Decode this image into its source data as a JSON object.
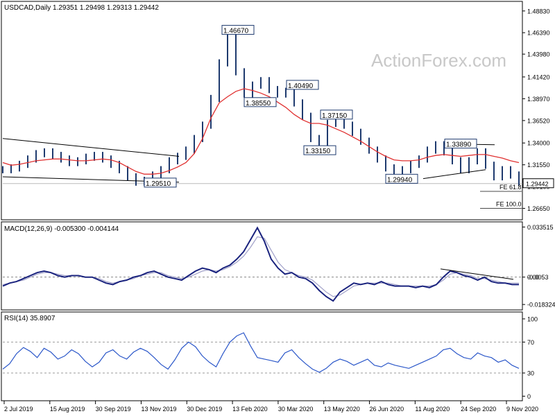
{
  "header": {
    "symbol_line": "USDCAD,Daily  1.29351 1.29498 1.29313 1.29442",
    "watermark": "ActionForex.com"
  },
  "colors": {
    "candle": "#1e3a6e",
    "ma": "#e03030",
    "macd_line": "#1a237e",
    "signal_line": "#a0a0c8",
    "rsi_line": "#2b57c9",
    "trendline": "#000000",
    "fe_line": "#4a4a4a"
  },
  "chart_data": [
    {
      "type": "candlestick",
      "title": "USDCAD,Daily  1.29351 1.29498 1.29313 1.29442",
      "ohlc_last": {
        "open": 1.29351,
        "high": 1.29498,
        "low": 1.29313,
        "close": 1.29442
      },
      "ylim": [
        1.2545,
        1.4975
      ],
      "y_ticks": [
        "1.48830",
        "1.46390",
        "1.43980",
        "1.41420",
        "1.38970",
        "1.36520",
        "1.34000",
        "1.31550",
        "1.29100",
        "1.26650"
      ],
      "x_ticks": [
        "2 Jul 2019",
        "15 Aug 2019",
        "30 Sep 2019",
        "13 Nov 2019",
        "30 Dec 2019",
        "13 Feb 2020",
        "30 Mar 2020",
        "13 May 2020",
        "26 Jun 2020",
        "11 Aug 2020",
        "24 Sep 2020",
        "9 Nov 2020"
      ],
      "current_price_label": "1.29442",
      "annotations": [
        {
          "text": "1.46670",
          "value": 1.4667
        },
        {
          "text": "1.38550",
          "value": 1.3855
        },
        {
          "text": "1.40490",
          "value": 1.4049
        },
        {
          "text": "1.37150",
          "value": 1.3715
        },
        {
          "text": "1.33150",
          "value": 1.3315
        },
        {
          "text": "1.29510",
          "value": 1.2951
        },
        {
          "text": "1.29940",
          "value": 1.2994
        },
        {
          "text": "1.33890",
          "value": 1.3389
        }
      ],
      "fib_levels": [
        {
          "text": "FE 61.8",
          "value": 1.2895
        },
        {
          "text": "FE 100.0",
          "value": 1.2705
        }
      ],
      "price_series_approx": [
        1.31,
        1.312,
        1.316,
        1.322,
        1.328,
        1.33,
        1.326,
        1.322,
        1.318,
        1.32,
        1.324,
        1.326,
        1.322,
        1.316,
        1.31,
        1.302,
        1.296,
        1.298,
        1.304,
        1.31,
        1.32,
        1.325,
        1.332,
        1.345,
        1.36,
        1.39,
        1.43,
        1.466,
        1.42,
        1.395,
        1.405,
        1.41,
        1.4,
        1.395,
        1.398,
        1.385,
        1.37,
        1.345,
        1.338,
        1.362,
        1.368,
        1.36,
        1.352,
        1.342,
        1.332,
        1.322,
        1.312,
        1.305,
        1.31,
        1.316,
        1.322,
        1.332,
        1.338,
        1.33,
        1.32,
        1.31,
        1.32,
        1.33,
        1.315,
        1.302,
        1.31,
        1.304,
        1.296
      ],
      "ma_series_approx": [
        1.318,
        1.315,
        1.316,
        1.318,
        1.32,
        1.321,
        1.322,
        1.322,
        1.321,
        1.32,
        1.32,
        1.321,
        1.322,
        1.321,
        1.318,
        1.313,
        1.308,
        1.305,
        1.305,
        1.306,
        1.309,
        1.313,
        1.318,
        1.328,
        1.345,
        1.368,
        1.385,
        1.392,
        1.398,
        1.401,
        1.399,
        1.396,
        1.392,
        1.386,
        1.38,
        1.372,
        1.366,
        1.362,
        1.362,
        1.36,
        1.356,
        1.352,
        1.347,
        1.342,
        1.336,
        1.33,
        1.325,
        1.321,
        1.32,
        1.32,
        1.321,
        1.324,
        1.326,
        1.327,
        1.326,
        1.325,
        1.326,
        1.327,
        1.327,
        1.325,
        1.323,
        1.32,
        1.318
      ]
    },
    {
      "type": "line",
      "title": "MACD(12,26,9) -0.005300 -0.004144",
      "ylim": [
        -0.0215,
        0.0365
      ],
      "y_ticks": [
        "0.033515",
        "0.00",
        "-0.018324"
      ],
      "current_macd_label": "-0.0053",
      "current_signal_label": "-0.0041",
      "series": [
        {
          "values": [
            -0.006,
            -0.004,
            -0.003,
            -0.001,
            0.001,
            0.003,
            0.004,
            0.003,
            0.001,
            0.0,
            0.001,
            0.001,
            0.0,
            0.0,
            -0.002,
            -0.004,
            -0.005,
            -0.003,
            -0.002,
            0.0,
            0.001,
            0.003,
            0.004,
            0.002,
            0.0,
            -0.001,
            -0.002,
            0.001,
            0.004,
            0.006,
            0.005,
            0.003,
            0.006,
            0.008,
            0.012,
            0.017,
            0.025,
            0.033,
            0.024,
            0.012,
            0.006,
            0.002,
            0.003,
            0.0,
            -0.001,
            -0.004,
            -0.009,
            -0.013,
            -0.016,
            -0.01,
            -0.007,
            -0.004,
            -0.005,
            -0.004,
            -0.005,
            -0.003,
            -0.005,
            -0.006,
            -0.006,
            -0.006,
            -0.007,
            -0.006,
            -0.007,
            -0.005,
            0.0,
            0.004,
            0.003,
            0.001,
            0.0,
            -0.002,
            0.0,
            -0.003,
            -0.004,
            -0.004,
            -0.005,
            -0.005
          ]
        },
        {
          "values": [
            -0.005,
            -0.004,
            -0.003,
            -0.002,
            0.0,
            0.002,
            0.003,
            0.003,
            0.002,
            0.001,
            0.001,
            0.001,
            0.0,
            0.0,
            -0.001,
            -0.003,
            -0.004,
            -0.003,
            -0.002,
            -0.001,
            0.001,
            0.002,
            0.003,
            0.003,
            0.001,
            0.0,
            -0.001,
            0.0,
            0.002,
            0.004,
            0.005,
            0.004,
            0.005,
            0.007,
            0.01,
            0.014,
            0.02,
            0.027,
            0.026,
            0.018,
            0.01,
            0.005,
            0.003,
            0.001,
            0.0,
            -0.002,
            -0.006,
            -0.01,
            -0.013,
            -0.012,
            -0.009,
            -0.006,
            -0.005,
            -0.004,
            -0.004,
            -0.004,
            -0.004,
            -0.005,
            -0.006,
            -0.006,
            -0.006,
            -0.006,
            -0.006,
            -0.005,
            -0.002,
            0.002,
            0.003,
            0.002,
            0.001,
            -0.001,
            -0.001,
            -0.002,
            -0.003,
            -0.004,
            -0.004,
            -0.004
          ]
        }
      ]
    },
    {
      "type": "line",
      "title": "RSI(14) 35.8907",
      "ylim": [
        -5,
        108
      ],
      "y_ticks": [
        "100",
        "70",
        "30",
        "0"
      ],
      "series": [
        {
          "values": [
            35,
            42,
            55,
            63,
            58,
            50,
            62,
            57,
            48,
            52,
            60,
            55,
            45,
            38,
            44,
            56,
            60,
            52,
            48,
            57,
            62,
            58,
            50,
            41,
            35,
            47,
            62,
            70,
            64,
            52,
            44,
            38,
            55,
            70,
            78,
            82,
            65,
            50,
            48,
            46,
            44,
            56,
            60,
            50,
            42,
            35,
            31,
            36,
            44,
            48,
            45,
            40,
            44,
            48,
            40,
            38,
            43,
            40,
            38,
            36,
            40,
            44,
            48,
            52,
            60,
            62,
            55,
            50,
            48,
            56,
            52,
            50,
            44,
            47,
            40,
            36
          ]
        }
      ]
    }
  ]
}
